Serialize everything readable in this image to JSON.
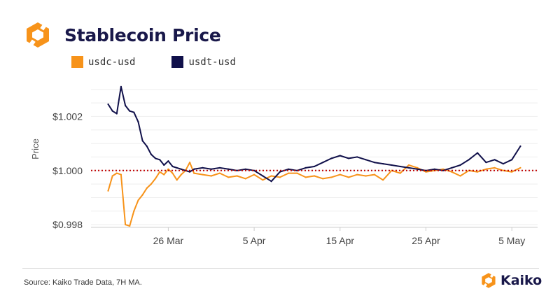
{
  "title": "Stablecoin Price",
  "source_note": "Source: Kaiko Trade Data, 7H MA.",
  "brand": {
    "name": "Kaiko",
    "logo_icon": "kaiko-logo-icon"
  },
  "colors": {
    "usdc": "#f7931a",
    "usdt": "#10104a",
    "peg_line": "#c00000",
    "title": "#19184a"
  },
  "chart_data": {
    "type": "line",
    "title": "Stablecoin Price",
    "xlabel": "",
    "ylabel": "Price",
    "ylim": [
      0.9979,
      1.0032
    ],
    "xlim": [
      "2023-03-17",
      "2023-05-08"
    ],
    "y_ticks": [
      {
        "value": 0.998,
        "label": "$0.998"
      },
      {
        "value": 1.0,
        "label": "$1.000"
      },
      {
        "value": 1.002,
        "label": "$1.002"
      }
    ],
    "x_ticks": [
      {
        "value": "2023-03-26",
        "label": "26 Mar"
      },
      {
        "value": "2023-04-05",
        "label": "5 Apr"
      },
      {
        "value": "2023-04-15",
        "label": "15 Apr"
      },
      {
        "value": "2023-04-25",
        "label": "25 Apr"
      },
      {
        "value": "2023-05-05",
        "label": "5 May"
      }
    ],
    "grid": true,
    "legend_position": "top-left",
    "reference_line": {
      "y": 1.0,
      "style": "dotted"
    },
    "series": [
      {
        "name": "usdc-usd",
        "color": "#f7931a",
        "x": [
          "2023-03-19",
          "2023-03-19T12:00",
          "2023-03-20",
          "2023-03-20T12:00",
          "2023-03-21",
          "2023-03-21T12:00",
          "2023-03-22",
          "2023-03-22T12:00",
          "2023-03-23",
          "2023-03-23T12:00",
          "2023-03-24",
          "2023-03-24T12:00",
          "2023-03-25",
          "2023-03-25T12:00",
          "2023-03-26",
          "2023-03-26T12:00",
          "2023-03-27",
          "2023-03-27T12:00",
          "2023-03-28",
          "2023-03-28T12:00",
          "2023-03-29",
          "2023-03-30",
          "2023-03-31",
          "2023-04-01",
          "2023-04-02",
          "2023-04-03",
          "2023-04-04",
          "2023-04-05",
          "2023-04-06",
          "2023-04-07",
          "2023-04-08",
          "2023-04-09",
          "2023-04-10",
          "2023-04-11",
          "2023-04-12",
          "2023-04-13",
          "2023-04-14",
          "2023-04-15",
          "2023-04-16",
          "2023-04-17",
          "2023-04-18",
          "2023-04-19",
          "2023-04-20",
          "2023-04-21",
          "2023-04-22",
          "2023-04-23",
          "2023-04-24",
          "2023-04-25",
          "2023-04-26",
          "2023-04-27",
          "2023-04-28",
          "2023-04-29",
          "2023-04-30",
          "2023-05-01",
          "2023-05-02",
          "2023-05-03",
          "2023-05-04",
          "2023-05-05",
          "2023-05-06"
        ],
        "values": [
          0.99925,
          0.9998,
          0.9999,
          0.99985,
          0.998,
          0.99795,
          0.9985,
          0.9989,
          0.9991,
          0.99935,
          0.9995,
          0.9997,
          0.99995,
          0.99985,
          1.00005,
          0.9999,
          0.99965,
          0.99985,
          1.0,
          1.0003,
          0.9999,
          0.99985,
          0.9998,
          0.9999,
          0.99975,
          0.9998,
          0.9997,
          0.99985,
          0.99965,
          0.9998,
          0.99975,
          0.9999,
          0.9999,
          0.99975,
          0.9998,
          0.9997,
          0.99975,
          0.99985,
          0.99975,
          0.99985,
          0.9998,
          0.99985,
          0.99965,
          1.0,
          0.9999,
          1.0002,
          1.0001,
          0.99995,
          1.0,
          1.00005,
          0.99995,
          0.9998,
          1.0,
          0.99995,
          1.00005,
          1.0001,
          1.0,
          0.99995,
          1.0001
        ]
      },
      {
        "name": "usdt-usd",
        "color": "#10104a",
        "x": [
          "2023-03-19",
          "2023-03-19T12:00",
          "2023-03-20",
          "2023-03-20T12:00",
          "2023-03-21",
          "2023-03-21T12:00",
          "2023-03-22",
          "2023-03-22T12:00",
          "2023-03-23",
          "2023-03-23T12:00",
          "2023-03-24",
          "2023-03-24T12:00",
          "2023-03-25",
          "2023-03-25T12:00",
          "2023-03-26",
          "2023-03-26T12:00",
          "2023-03-27",
          "2023-03-27T12:00",
          "2023-03-28",
          "2023-03-28T12:00",
          "2023-03-29",
          "2023-03-30",
          "2023-03-31",
          "2023-04-01",
          "2023-04-02",
          "2023-04-03",
          "2023-04-04",
          "2023-04-05",
          "2023-04-06",
          "2023-04-07",
          "2023-04-08",
          "2023-04-09",
          "2023-04-10",
          "2023-04-11",
          "2023-04-12",
          "2023-04-13",
          "2023-04-14",
          "2023-04-15",
          "2023-04-16",
          "2023-04-17",
          "2023-04-18",
          "2023-04-19",
          "2023-04-20",
          "2023-04-21",
          "2023-04-22",
          "2023-04-23",
          "2023-04-24",
          "2023-04-25",
          "2023-04-26",
          "2023-04-27",
          "2023-04-28",
          "2023-04-29",
          "2023-04-30",
          "2023-05-01",
          "2023-05-02",
          "2023-05-03",
          "2023-05-04",
          "2023-05-05",
          "2023-05-06"
        ],
        "values": [
          1.00245,
          1.0022,
          1.0021,
          1.0031,
          1.0024,
          1.0022,
          1.00215,
          1.0018,
          1.0011,
          1.0009,
          1.0006,
          1.00045,
          1.0004,
          1.0002,
          1.00035,
          1.00015,
          1.0001,
          1.00005,
          1.0,
          0.99995,
          1.00005,
          1.0001,
          1.00005,
          1.0001,
          1.00005,
          1.0,
          1.00005,
          1.0,
          0.9998,
          0.9996,
          0.99995,
          1.00005,
          1.0,
          1.0001,
          1.00015,
          1.0003,
          1.00045,
          1.00055,
          1.00045,
          1.0005,
          1.0004,
          1.0003,
          1.00025,
          1.0002,
          1.00015,
          1.0001,
          1.00005,
          1.0,
          1.00005,
          1.0,
          1.0001,
          1.0002,
          1.0004,
          1.00065,
          1.0003,
          1.0004,
          1.00025,
          1.0004,
          1.0009
        ]
      }
    ]
  }
}
